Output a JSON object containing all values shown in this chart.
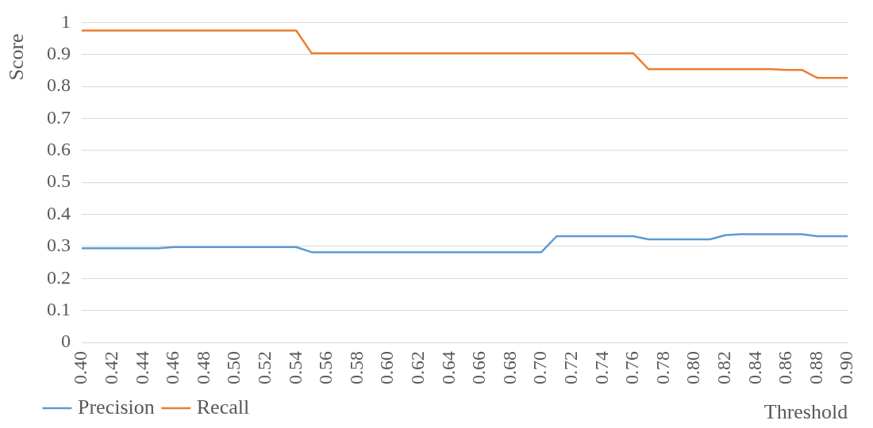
{
  "chart_data": {
    "type": "line",
    "xlabel": "Threshold",
    "ylabel": "Score",
    "categories": [
      "0.40",
      null,
      "0.42",
      null,
      "0.44",
      null,
      "0.46",
      null,
      "0.48",
      null,
      "0.50",
      null,
      "0.52",
      null,
      "0.54",
      null,
      "0.56",
      null,
      "0.58",
      null,
      "0.60",
      null,
      "0.62",
      null,
      "0.64",
      null,
      "0.66",
      null,
      "0.68",
      null,
      "0.70",
      null,
      "0.72",
      null,
      "0.74",
      null,
      "0.76",
      null,
      "0.78",
      null,
      "0.80",
      null,
      "0.82",
      null,
      "0.84",
      null,
      "0.86",
      null,
      "0.88",
      null,
      "0.90"
    ],
    "series": [
      {
        "name": "Precision",
        "color": "#5b9bd5",
        "values": [
          0.294,
          0.294,
          0.294,
          0.294,
          0.294,
          0.294,
          0.298,
          0.298,
          0.298,
          0.298,
          0.298,
          0.298,
          0.298,
          0.298,
          0.298,
          0.282,
          0.282,
          0.282,
          0.282,
          0.282,
          0.282,
          0.282,
          0.282,
          0.282,
          0.282,
          0.282,
          0.282,
          0.282,
          0.282,
          0.282,
          0.282,
          0.332,
          0.332,
          0.332,
          0.332,
          0.332,
          0.332,
          0.322,
          0.322,
          0.322,
          0.322,
          0.322,
          0.335,
          0.338,
          0.338,
          0.338,
          0.338,
          0.338,
          0.332,
          0.332,
          0.332
        ]
      },
      {
        "name": "Recall",
        "color": "#ed7d31",
        "values": [
          0.975,
          0.975,
          0.975,
          0.975,
          0.975,
          0.975,
          0.975,
          0.975,
          0.975,
          0.975,
          0.975,
          0.975,
          0.975,
          0.975,
          0.975,
          0.904,
          0.904,
          0.904,
          0.904,
          0.904,
          0.904,
          0.904,
          0.904,
          0.904,
          0.904,
          0.904,
          0.904,
          0.904,
          0.904,
          0.904,
          0.904,
          0.904,
          0.904,
          0.904,
          0.904,
          0.904,
          0.904,
          0.854,
          0.854,
          0.854,
          0.854,
          0.854,
          0.854,
          0.854,
          0.854,
          0.854,
          0.852,
          0.852,
          0.827,
          0.827,
          0.827
        ]
      }
    ],
    "ylim": [
      0,
      1
    ],
    "yticks": [
      0,
      0.1,
      0.2,
      0.3,
      0.4,
      0.5,
      0.6,
      0.7,
      0.8,
      0.9,
      1
    ],
    "grid": "y",
    "legend": "bottom left",
    "marker": "none",
    "line_style": "solid"
  }
}
